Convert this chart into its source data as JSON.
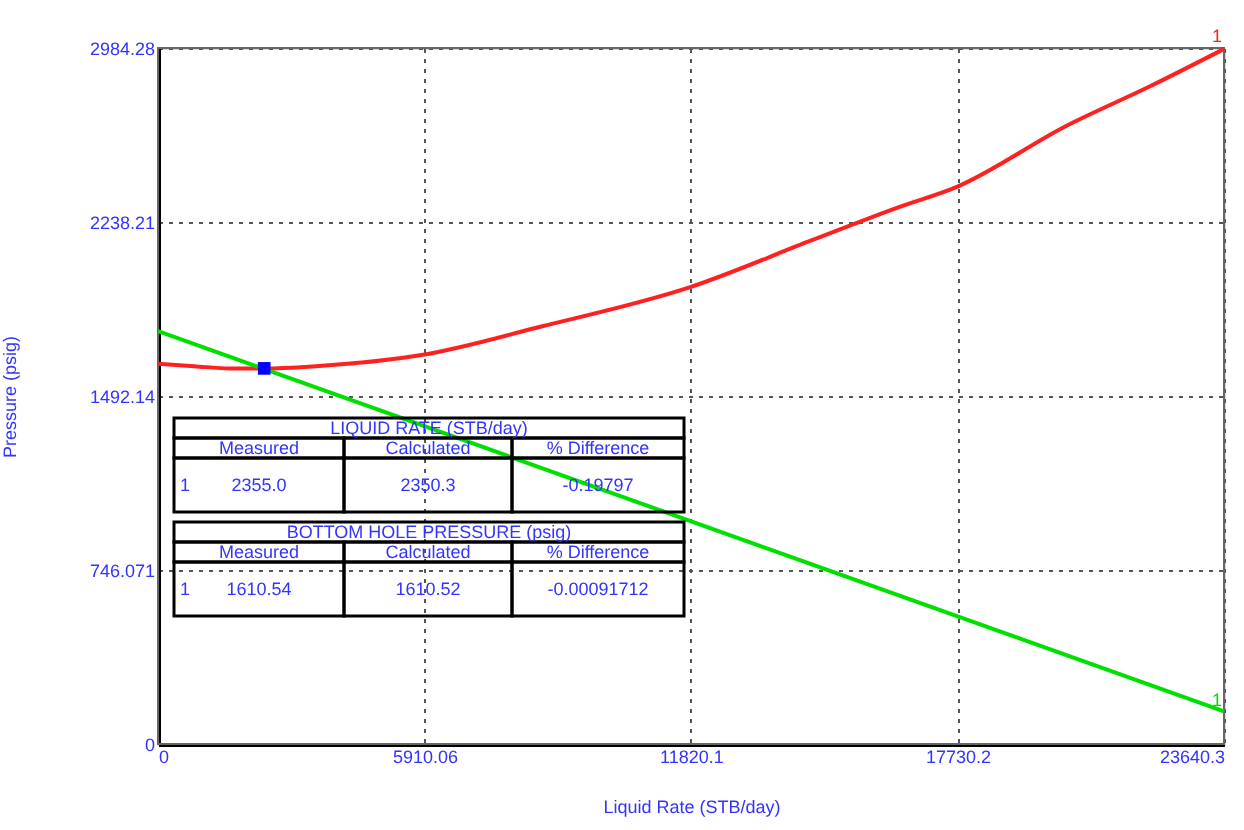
{
  "chart_data": {
    "type": "line",
    "xlabel": "Liquid Rate  (STB/day)",
    "ylabel": "Pressure  (psig)",
    "xlim": [
      0,
      23640.3
    ],
    "ylim": [
      0,
      2984.28
    ],
    "xticks": [
      0,
      5910.06,
      11820.1,
      17730.2,
      23640.3
    ],
    "yticks": [
      0,
      746.071,
      1492.14,
      2238.21,
      2984.28
    ],
    "grid": true,
    "series": [
      {
        "color": "#ff2020",
        "x": [
          0,
          800,
          1600,
          2355,
          3500,
          5910,
          8500,
          11820,
          14500,
          16400,
          17730,
          20140,
          22000,
          23640
        ],
        "values": [
          1630,
          1620,
          1610,
          1610,
          1620,
          1670,
          1790,
          1960,
          2160,
          2300,
          2390,
          2650,
          2820,
          2980
        ]
      },
      {
        "color": "#00e000",
        "x": [
          0,
          23640
        ],
        "values": [
          1770,
          140
        ]
      },
      {
        "type": "scatter",
        "color": "#0000ff",
        "marker": "square",
        "x": [
          2355
        ],
        "values": [
          1610.54
        ]
      }
    ],
    "annotations": [
      "LIQUID RATE   (STB/day)",
      "Measured",
      "Calculated",
      "% Difference",
      "1",
      "2355.0",
      "2350.3",
      "-0.19797",
      "BOTTOM HOLE PRESSURE   (psig)",
      "Measured",
      "Calculated",
      "% Difference",
      "1",
      "1610.54",
      "1610.52",
      "-0.00091712",
      {
        "text": "1",
        "x": 23640.3,
        "y": 2984.28
      },
      {
        "text": "1",
        "x": 23640.3,
        "y": 137
      }
    ]
  }
}
